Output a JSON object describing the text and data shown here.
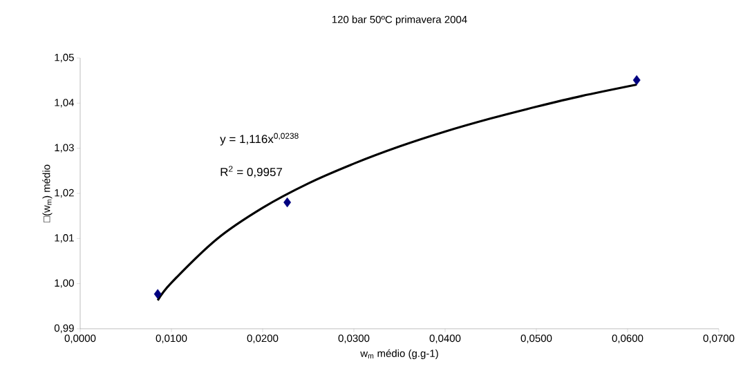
{
  "chart_data": {
    "type": "scatter",
    "title": "120 bar 50ºC  primavera 2004",
    "xlabel": "w$_{m}$ médio (g.g-1)",
    "ylabel": "□(w$_{m}$) médio",
    "x": [
      0.0085,
      0.0227,
      0.061
    ],
    "series": [
      {
        "color": "#000080",
        "values": [
          0.9977,
          1.018,
          1.0451
        ],
        "marker": "diamond"
      },
      {
        "type": "line",
        "color": "#000000",
        "x": [
          0.0085,
          0.01,
          0.015,
          0.02,
          0.025,
          0.03,
          0.035,
          0.04,
          0.045,
          0.05,
          0.055,
          0.061
        ],
        "values": [
          0.9963,
          1.0002,
          1.0099,
          1.0168,
          1.0222,
          1.0266,
          1.0304,
          1.0337,
          1.0366,
          1.0392,
          1.0416,
          1.0441
        ],
        "marker": "none",
        "line_style": "solid"
      }
    ],
    "annotations": [
      "y = 1,116x$^{0,0238}$",
      "R$^{2}$ = 0,9957"
    ],
    "xlim": [
      0,
      0.07
    ],
    "xticks": [
      {
        "value": 0,
        "label": "0,0000"
      },
      {
        "value": 0.01,
        "label": "0,0100"
      },
      {
        "value": 0.02,
        "label": "0,0200"
      },
      {
        "value": 0.03,
        "label": "0,0300"
      },
      {
        "value": 0.04,
        "label": "0,0400"
      },
      {
        "value": 0.05,
        "label": "0,0500"
      },
      {
        "value": 0.06,
        "label": "0,0600"
      },
      {
        "value": 0.07,
        "label": "0,0700"
      }
    ],
    "ylim": [
      0.99,
      1.05
    ],
    "yticks": [
      {
        "value": 0.99,
        "label": "0,99"
      },
      {
        "value": 1.0,
        "label": "1,00"
      },
      {
        "value": 1.01,
        "label": "1,01"
      },
      {
        "value": 1.02,
        "label": "1,02"
      },
      {
        "value": 1.03,
        "label": "1,03"
      },
      {
        "value": 1.04,
        "label": "1,04"
      },
      {
        "value": 1.05,
        "label": "1,05"
      }
    ],
    "grid": false
  }
}
